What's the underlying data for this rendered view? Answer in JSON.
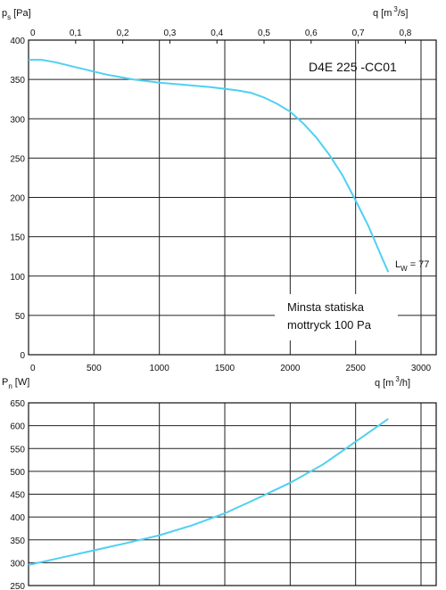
{
  "chart_data": [
    {
      "type": "line",
      "title": "D4E 225 -CC01",
      "ylabel": "p",
      "ylabel_sub": "s",
      "ylabel_unit": "[Pa]",
      "xlabel": "q [m",
      "xlabel_sup": "3",
      "xlabel_tail": "/h]",
      "x2label": "q [m",
      "x2label_sup": "3",
      "x2label_tail": "/s]",
      "xlim": [
        0,
        3000
      ],
      "ylim": [
        0,
        400
      ],
      "x_ticks": [
        "0",
        "500",
        "1000",
        "1500",
        "2000",
        "2500",
        "3000"
      ],
      "y_ticks": [
        "0",
        "50",
        "100",
        "150",
        "200",
        "250",
        "300",
        "350",
        "400"
      ],
      "x2_ticks": [
        "0",
        "0,1",
        "0,2",
        "0,3",
        "0,4",
        "0,5",
        "0,6",
        "0,7",
        "0,8"
      ],
      "grid": true,
      "annotation_lw_prefix": "L",
      "annotation_lw_sub": "W",
      "annotation_lw_value": "= 77",
      "note_line1": "Minsta statiska",
      "note_line2": "mottryck 100 Pa",
      "series": [
        {
          "color": "#4fd0f2",
          "x": [
            0,
            100,
            200,
            400,
            600,
            800,
            1000,
            1200,
            1400,
            1600,
            1700,
            1800,
            1900,
            2000,
            2100,
            2200,
            2300,
            2400,
            2500,
            2600,
            2700,
            2750
          ],
          "y": [
            375,
            375,
            372,
            364,
            356,
            350,
            346,
            343,
            340,
            336,
            333,
            327,
            319,
            309,
            294,
            276,
            254,
            228,
            196,
            163,
            124,
            105
          ]
        }
      ]
    },
    {
      "type": "line",
      "ylabel": "P",
      "ylabel_sub": "n",
      "ylabel_unit": "[W]",
      "xlim": [
        0,
        3000
      ],
      "ylim": [
        250,
        650
      ],
      "y_ticks": [
        "250",
        "300",
        "350",
        "400",
        "450",
        "500",
        "550",
        "600",
        "650"
      ],
      "grid": true,
      "series": [
        {
          "color": "#4fd0f2",
          "x": [
            0,
            250,
            500,
            750,
            1000,
            1250,
            1500,
            1750,
            2000,
            2250,
            2500,
            2750
          ],
          "y": [
            295,
            311,
            327,
            343,
            360,
            382,
            408,
            441,
            475,
            515,
            565,
            615
          ]
        }
      ]
    }
  ]
}
